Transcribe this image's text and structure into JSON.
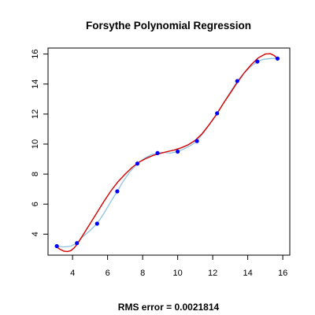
{
  "chart_data": {
    "type": "scatter",
    "title": "Forsythe Polynomial Regression",
    "footer": "RMS error = 0.0021814",
    "xlabel": "",
    "ylabel": "",
    "xlim": [
      2.6,
      16.4
    ],
    "ylim": [
      2.6,
      16.4
    ],
    "x_ticks": [
      4,
      6,
      8,
      10,
      12,
      14,
      16
    ],
    "y_ticks": [
      4,
      6,
      8,
      10,
      12,
      14,
      16
    ],
    "grid": false,
    "points": {
      "x": [
        3.1,
        4.25,
        5.4,
        6.55,
        7.7,
        8.85,
        10.0,
        11.1,
        12.25,
        13.4,
        14.55,
        15.7
      ],
      "y": [
        3.2,
        3.4,
        4.7,
        6.85,
        8.7,
        9.4,
        9.5,
        10.2,
        12.05,
        14.2,
        15.5,
        15.7
      ],
      "color": "#0000ff"
    },
    "spline_curve": {
      "color": "#8fc3e0",
      "x": [
        3.1,
        3.5,
        3.9,
        4.25,
        4.6,
        5.0,
        5.4,
        5.8,
        6.2,
        6.55,
        6.9,
        7.3,
        7.7,
        8.1,
        8.5,
        8.85,
        9.2,
        9.6,
        10.0,
        10.4,
        10.8,
        11.1,
        11.5,
        11.9,
        12.25,
        12.6,
        13.0,
        13.4,
        13.8,
        14.2,
        14.55,
        14.9,
        15.3,
        15.7
      ],
      "y": [
        3.2,
        3.15,
        3.2,
        3.4,
        3.85,
        4.25,
        4.7,
        5.4,
        6.2,
        6.85,
        7.55,
        8.2,
        8.7,
        9.05,
        9.3,
        9.4,
        9.45,
        9.4,
        9.5,
        9.7,
        9.95,
        10.2,
        10.8,
        11.45,
        12.05,
        12.7,
        13.45,
        14.2,
        14.75,
        15.2,
        15.5,
        15.65,
        15.7,
        15.7
      ]
    },
    "polynomial_fit": {
      "color": "#d40000",
      "x_range": [
        3.1,
        15.7
      ],
      "samples": [
        [
          3.1,
          3.2
        ],
        [
          3.2,
          3.05
        ],
        [
          3.35,
          2.95
        ],
        [
          3.5,
          2.87
        ],
        [
          3.7,
          2.84
        ],
        [
          3.9,
          2.9
        ],
        [
          4.1,
          3.1
        ],
        [
          4.3,
          3.4
        ],
        [
          4.6,
          3.95
        ],
        [
          5.0,
          4.7
        ],
        [
          5.4,
          5.45
        ],
        [
          5.8,
          6.2
        ],
        [
          6.2,
          6.9
        ],
        [
          6.6,
          7.5
        ],
        [
          7.0,
          8.0
        ],
        [
          7.4,
          8.45
        ],
        [
          7.8,
          8.8
        ],
        [
          8.2,
          9.05
        ],
        [
          8.6,
          9.25
        ],
        [
          9.0,
          9.38
        ],
        [
          9.4,
          9.5
        ],
        [
          9.8,
          9.6
        ],
        [
          10.2,
          9.75
        ],
        [
          10.6,
          9.95
        ],
        [
          11.0,
          10.25
        ],
        [
          11.4,
          10.7
        ],
        [
          11.8,
          11.3
        ],
        [
          12.2,
          11.95
        ],
        [
          12.6,
          12.7
        ],
        [
          13.0,
          13.4
        ],
        [
          13.4,
          14.1
        ],
        [
          13.8,
          14.75
        ],
        [
          14.2,
          15.3
        ],
        [
          14.6,
          15.75
        ],
        [
          15.0,
          16.0
        ],
        [
          15.3,
          16.02
        ],
        [
          15.5,
          15.9
        ],
        [
          15.7,
          15.7
        ]
      ]
    }
  }
}
